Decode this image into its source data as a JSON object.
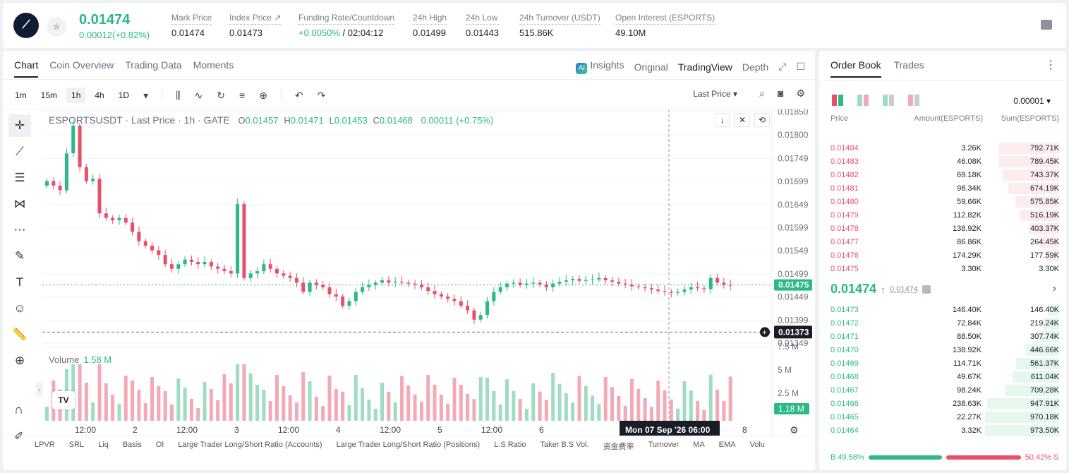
{
  "header": {
    "price": "0.01474",
    "change": "0.00012(+0.82%)",
    "stats": [
      {
        "label": "Mark Price",
        "value": "0.01474"
      },
      {
        "label": "Index Price ↗",
        "value": "0.01473"
      },
      {
        "label": "Funding Rate/Countdown",
        "value_green": "+0.0050%",
        "value": " / 02:04:12"
      },
      {
        "label": "24h High",
        "value": "0.01499"
      },
      {
        "label": "24h Low",
        "value": "0.01443"
      },
      {
        "label": "24h Turnover (USDT)",
        "value": "515.86K"
      },
      {
        "label": "Open Interest (ESPORTS)",
        "value": "49.10M"
      }
    ]
  },
  "chart_tabs": [
    "Chart",
    "Coin Overview",
    "Trading Data",
    "Moments"
  ],
  "view_tabs": {
    "insights": "Insights",
    "original": "Original",
    "tradingview": "TradingView",
    "depth": "Depth"
  },
  "intervals": [
    "1m",
    "15m",
    "1h",
    "4h",
    "1D"
  ],
  "price_type": "Last Price",
  "ohlc": {
    "symbol": "ESPORTSUSDT · Last Price · 1h · GATE",
    "o_label": "O",
    "o": "0.01457",
    "h_label": "H",
    "h": "0.01471",
    "l_label": "L",
    "l": "0.01453",
    "c_label": "C",
    "c": "0.01468",
    "chg": "0.00011 (+0.75%)"
  },
  "volume": {
    "label": "Volume",
    "value": "1.58 M",
    "current_tag": "1.18 M",
    "axis": [
      "7.5 M",
      "5 M",
      "2.5 M"
    ]
  },
  "crosshair": {
    "price_tag": "0.01373",
    "time_tag": "Mon 07 Sep '26   06:00"
  },
  "last_price_tag": "0.01475",
  "bottom_indicators": [
    "LPVR",
    "SRL",
    "Liq",
    "Basis",
    "OI",
    "Large Trader Long/Short Ratio (Accounts)",
    "Large Trader Long/Short Ratio (Positions)",
    "L.S Ratio",
    "Taker B.S Vol.",
    "资金费率",
    "Turnover",
    "MA",
    "EMA",
    "Volu"
  ],
  "chart_data": {
    "type": "candlestick",
    "title": "ESPORTSUSDT · Last Price · 1h · GATE",
    "price_axis_ticks": [
      "0.01850",
      "0.01800",
      "0.01749",
      "0.01699",
      "0.01649",
      "0.01599",
      "0.01549",
      "0.01499",
      "0.01449",
      "0.01399",
      "0.01349"
    ],
    "time_axis_ticks": [
      "12:00",
      "2",
      "12:00",
      "3",
      "12:00",
      "4",
      "12:00",
      "5",
      "12:00",
      "6",
      "12:00",
      "8"
    ],
    "ylim": [
      0.0134,
      0.01855
    ],
    "closes": [
      0.017,
      0.0169,
      0.0168,
      0.0176,
      0.0182,
      0.0173,
      0.017,
      0.01705,
      0.0163,
      0.0162,
      0.01615,
      0.0162,
      0.0161,
      0.0159,
      0.0157,
      0.0156,
      0.0155,
      0.0154,
      0.0152,
      0.0151,
      0.0152,
      0.0153,
      0.01525,
      0.0152,
      0.01525,
      0.01515,
      0.0151,
      0.01505,
      0.015,
      0.0165,
      0.0149,
      0.015,
      0.01505,
      0.0152,
      0.0151,
      0.015,
      0.01495,
      0.0149,
      0.0148,
      0.0146,
      0.0148,
      0.01475,
      0.0147,
      0.01455,
      0.0145,
      0.0143,
      0.0144,
      0.0146,
      0.0147,
      0.01475,
      0.0148,
      0.01485,
      0.0148,
      0.01482,
      0.0148,
      0.01478,
      0.01476,
      0.0147,
      0.01462,
      0.01455,
      0.0145,
      0.01445,
      0.0144,
      0.0143,
      0.0142,
      0.014,
      0.0141,
      0.0144,
      0.0146,
      0.0147,
      0.01478,
      0.0148,
      0.01475,
      0.01478,
      0.0148,
      0.01476,
      0.0147,
      0.01478,
      0.01482,
      0.01485,
      0.01488,
      0.01484,
      0.01486,
      0.01487,
      0.0149,
      0.01485,
      0.01482,
      0.01478,
      0.01476,
      0.01472,
      0.0147,
      0.01468,
      0.01465,
      0.01462,
      0.0146,
      0.01458,
      0.0146,
      0.01465,
      0.0147,
      0.01468,
      0.01466,
      0.0149,
      0.0148,
      0.01475,
      0.01474
    ],
    "volume_axis": [
      "7.5 M",
      "5 M",
      "2.5 M"
    ]
  },
  "orderbook": {
    "tabs": [
      "Order Book",
      "Trades"
    ],
    "precision": "0.00001",
    "headers": [
      "Price",
      "Amount(ESPORTS)",
      "Sum(ESPORTS)"
    ],
    "asks": [
      {
        "price": "0.01484",
        "amount": "3.26K",
        "sum": "792.71K",
        "depth": 0.81
      },
      {
        "price": "0.01483",
        "amount": "46.08K",
        "sum": "789.45K",
        "depth": 0.81
      },
      {
        "price": "0.01482",
        "amount": "69.18K",
        "sum": "743.37K",
        "depth": 0.76
      },
      {
        "price": "0.01481",
        "amount": "98.34K",
        "sum": "674.19K",
        "depth": 0.69
      },
      {
        "price": "0.01480",
        "amount": "59.66K",
        "sum": "575.85K",
        "depth": 0.59
      },
      {
        "price": "0.01479",
        "amount": "112.82K",
        "sum": "516.19K",
        "depth": 0.53
      },
      {
        "price": "0.01478",
        "amount": "138.92K",
        "sum": "403.37K",
        "depth": 0.41
      },
      {
        "price": "0.01477",
        "amount": "86.86K",
        "sum": "264.45K",
        "depth": 0.27
      },
      {
        "price": "0.01476",
        "amount": "174.29K",
        "sum": "177.59K",
        "depth": 0.18
      },
      {
        "price": "0.01475",
        "amount": "3.30K",
        "sum": "3.30K",
        "depth": 0.0
      }
    ],
    "mid_price": "0.01474",
    "mid_mark": "0.01474",
    "bids": [
      {
        "price": "0.01473",
        "amount": "146.40K",
        "sum": "146.40K",
        "depth": 0.15
      },
      {
        "price": "0.01472",
        "amount": "72.84K",
        "sum": "219.24K",
        "depth": 0.22
      },
      {
        "price": "0.01471",
        "amount": "88.50K",
        "sum": "307.74K",
        "depth": 0.32
      },
      {
        "price": "0.01470",
        "amount": "138.92K",
        "sum": "446.66K",
        "depth": 0.46
      },
      {
        "price": "0.01469",
        "amount": "114.71K",
        "sum": "561.37K",
        "depth": 0.58
      },
      {
        "price": "0.01468",
        "amount": "49.67K",
        "sum": "611.04K",
        "depth": 0.63
      },
      {
        "price": "0.01467",
        "amount": "98.24K",
        "sum": "709.28K",
        "depth": 0.73
      },
      {
        "price": "0.01466",
        "amount": "238.63K",
        "sum": "947.91K",
        "depth": 0.97
      },
      {
        "price": "0.01465",
        "amount": "22.27K",
        "sum": "970.18K",
        "depth": 1.0
      },
      {
        "price": "0.01464",
        "amount": "3.32K",
        "sum": "973.50K",
        "depth": 1.0
      }
    ],
    "buy_ratio": "B 49.58%",
    "sell_ratio": "50.42% S",
    "buy_frac": 0.4958
  },
  "colors": {
    "up": "#2bb986",
    "down": "#e8506a"
  }
}
